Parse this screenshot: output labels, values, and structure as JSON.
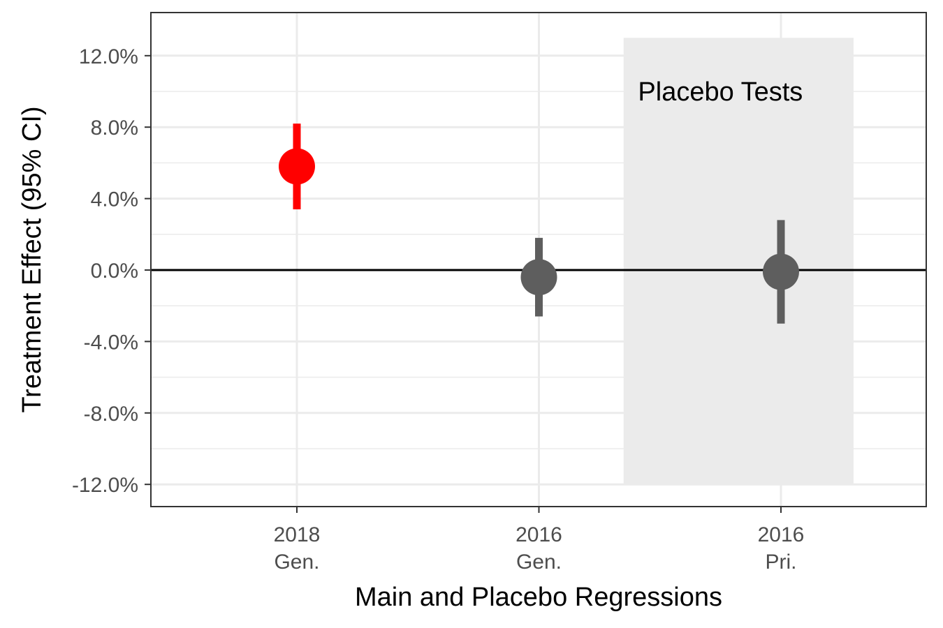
{
  "chart_data": {
    "type": "scatter",
    "xlabel": "Main and Placebo Regressions",
    "ylabel": "Treatment Effect (95% CI)",
    "ylim": [
      -13.2,
      14.2
    ],
    "y_ticks": [
      12,
      8,
      4,
      0,
      -4,
      -8,
      -12
    ],
    "y_tick_labels": [
      "12.0%",
      "8.0%",
      "4.0%",
      "0.0%",
      "-4.0%",
      "-8.0%",
      "-12.0%"
    ],
    "grid": true,
    "reference_line_y": 0,
    "categories": [
      {
        "line1": "2018",
        "line2": "Gen."
      },
      {
        "line1": "2016",
        "line2": "Gen."
      },
      {
        "line1": "2016",
        "line2": "Pri."
      }
    ],
    "points": [
      {
        "estimate": 5.8,
        "ci_low": 3.4,
        "ci_high": 8.2,
        "color": "#ff0000"
      },
      {
        "estimate": -0.4,
        "ci_low": -2.6,
        "ci_high": 1.8,
        "color": "#5e5e5e"
      },
      {
        "estimate": -0.1,
        "ci_low": -3.0,
        "ci_high": 2.8,
        "color": "#5e5e5e"
      }
    ],
    "shaded_region": {
      "x_from": 1.35,
      "x_to": 2.3,
      "y_from": -12,
      "y_to": 13,
      "color": "#ebebeb"
    },
    "annotation": {
      "text": "Placebo Tests",
      "x": 1.75,
      "y": 10
    }
  }
}
